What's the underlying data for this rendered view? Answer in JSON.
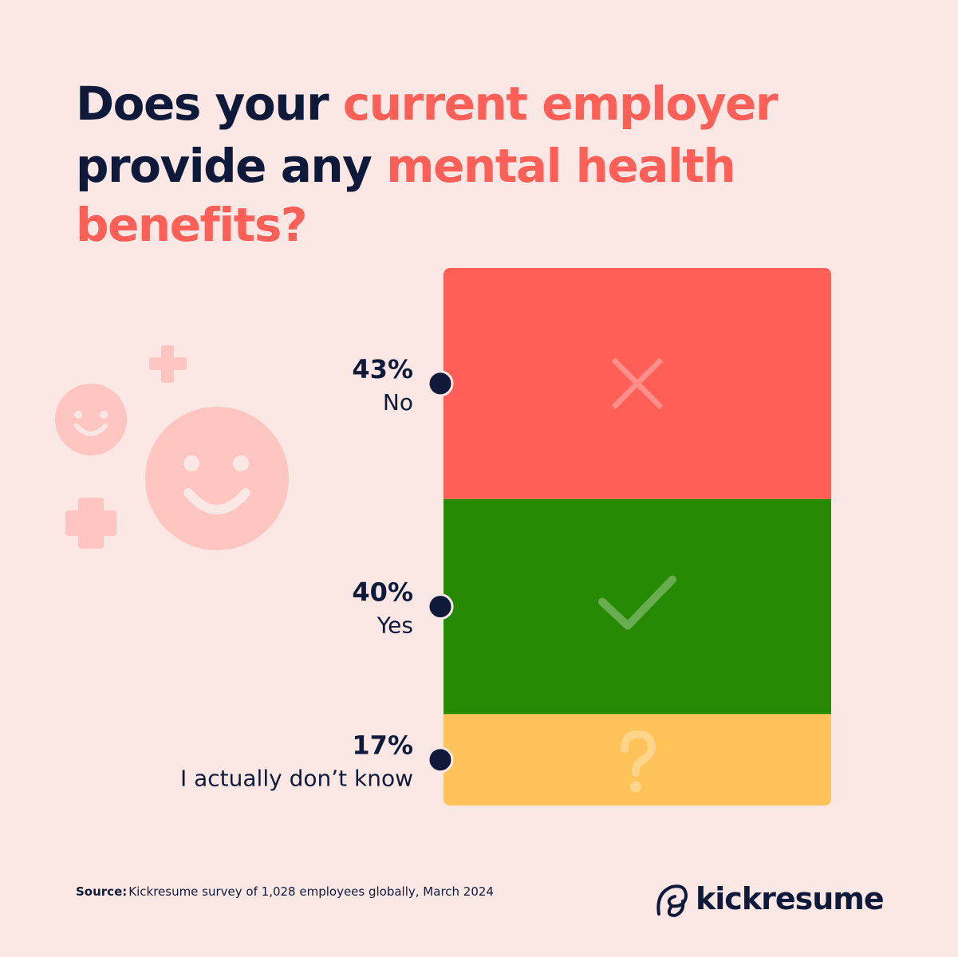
{
  "chart_data": {
    "type": "stacked-bar",
    "title_lines": [
      [
        {
          "text": "Does your ",
          "color": "#0f1a3a"
        },
        {
          "text": "current employer",
          "color": "#ff5f57"
        }
      ],
      [
        {
          "text": "provide any ",
          "color": "#0f1a3a"
        },
        {
          "text": "mental health",
          "color": "#ff5f57"
        }
      ],
      [
        {
          "text": "benefits?",
          "color": "#ff5f57"
        }
      ]
    ],
    "categories": [
      "No",
      "Yes",
      "I actually don’t know"
    ],
    "values": [
      43,
      40,
      17
    ],
    "value_labels": [
      "43%",
      "40%",
      "17%"
    ],
    "colors": [
      "#ff5f57",
      "#278a05",
      "#ffc35a"
    ],
    "ylim": [
      0,
      100
    ]
  },
  "footer": {
    "source_label": "Source:",
    "source_text": "Kickresume survey of 1,028 employees globally, March 2024",
    "brand": "kickresume"
  }
}
